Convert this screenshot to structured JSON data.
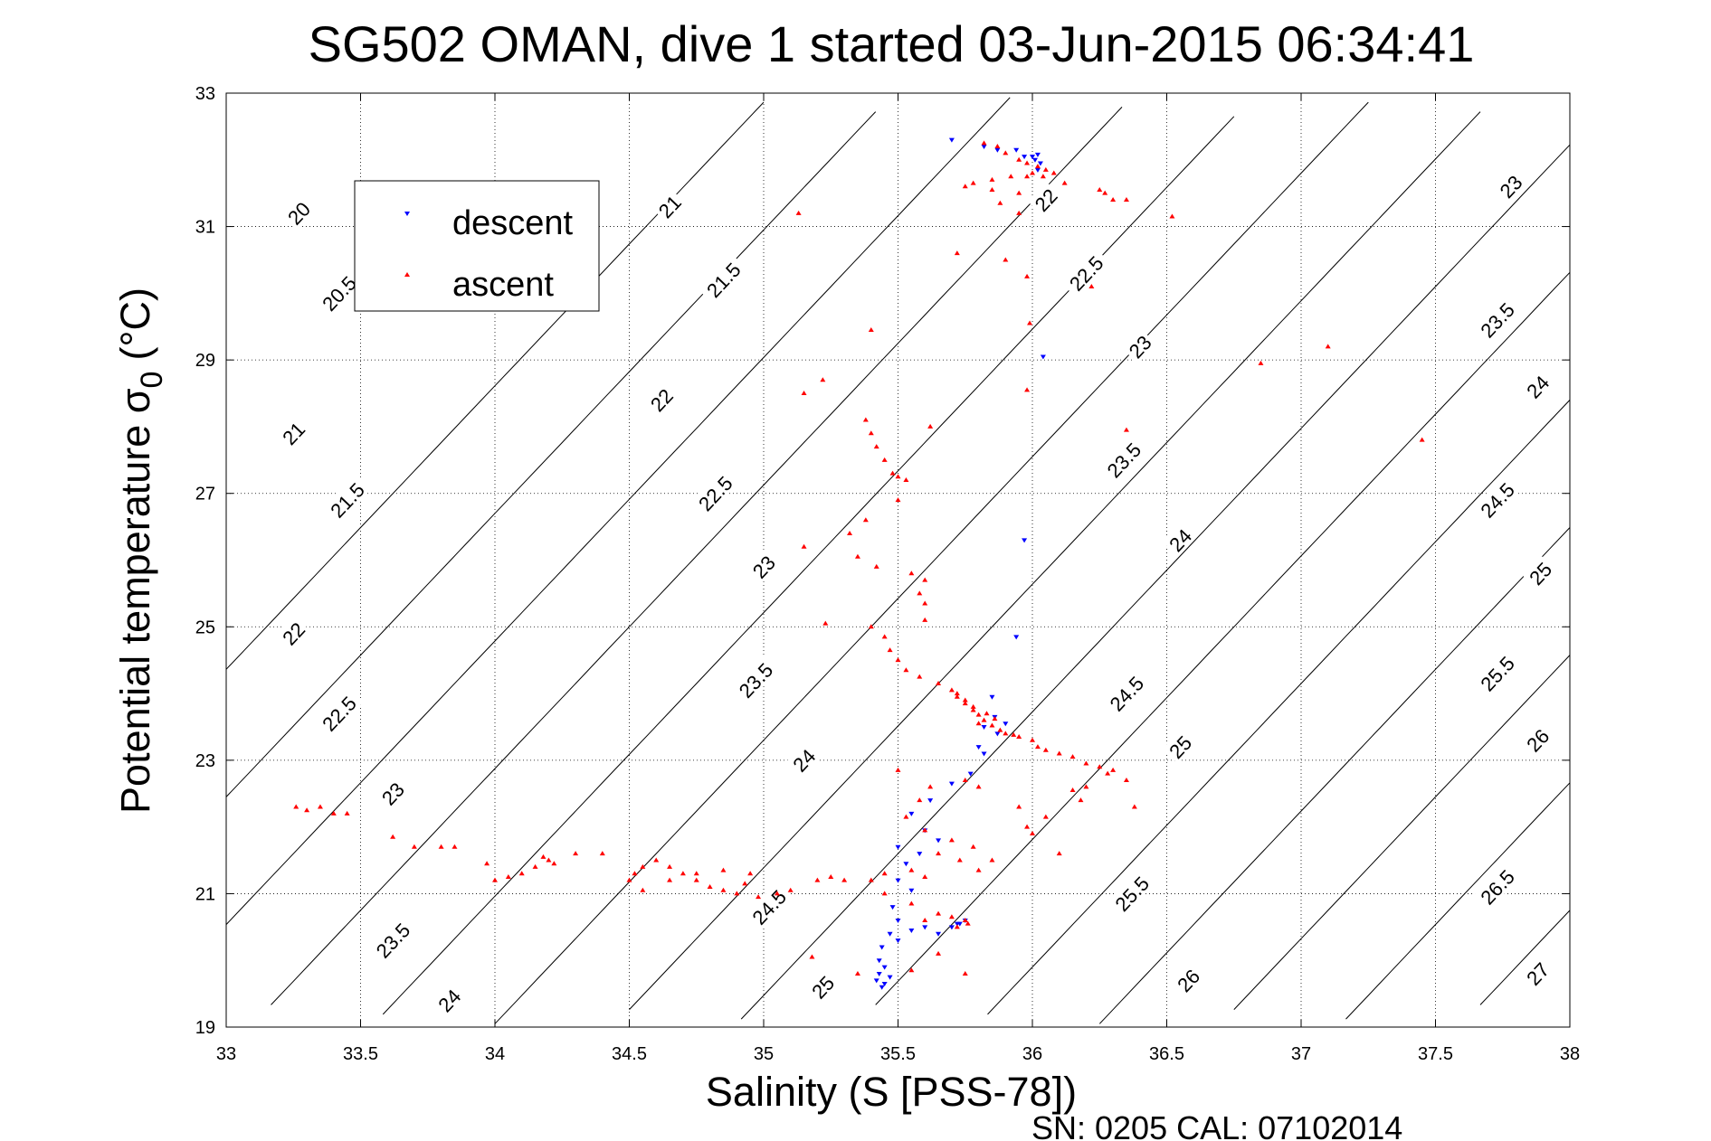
{
  "chart_data": {
    "type": "scatter",
    "title": "SG502 OMAN, dive 1 started 03-Jun-2015 06:34:41",
    "xlabel": "Salinity (S [PSS-78])",
    "ylabel_main": "Potential temperature σ",
    "ylabel_sub": "0",
    "ylabel_unit": "(°C)",
    "footnote": "SN: 0205  CAL: 07102014",
    "xlim": [
      33,
      38
    ],
    "ylim": [
      19,
      33
    ],
    "x_ticks": [
      33,
      33.5,
      34,
      34.5,
      35,
      35.5,
      36,
      36.5,
      37,
      37.5,
      38
    ],
    "x_tick_labels": [
      "33",
      "33.5",
      "34",
      "34.5",
      "35",
      "35.5",
      "36",
      "36.5",
      "37",
      "37.5",
      "38"
    ],
    "y_ticks": [
      19,
      21,
      23,
      25,
      27,
      29,
      31,
      33
    ],
    "y_tick_labels": [
      "19",
      "21",
      "23",
      "25",
      "27",
      "29",
      "31",
      "33"
    ],
    "grid": true,
    "legend_position": "top-left",
    "contour_levels": [
      20,
      20.5,
      21,
      21.5,
      22,
      22.5,
      23,
      23.5,
      24,
      24.5,
      25,
      25.5,
      26,
      26.5,
      27
    ],
    "contour_label_texts": [
      "20",
      "20.5",
      "21",
      "21.5",
      "22",
      "22.5",
      "23",
      "23.5",
      "24",
      "24.5",
      "25",
      "25.5",
      "26",
      "26.5",
      "27"
    ],
    "contour_labels": [
      {
        "text": "20",
        "s": 33.27,
        "t": 31.2
      },
      {
        "text": "20.5",
        "s": 33.42,
        "t": 30.0
      },
      {
        "text": "21",
        "s": 33.25,
        "t": 27.9
      },
      {
        "text": "21.5",
        "s": 33.45,
        "t": 26.9
      },
      {
        "text": "22",
        "s": 33.25,
        "t": 24.9
      },
      {
        "text": "22.5",
        "s": 33.42,
        "t": 23.7
      },
      {
        "text": "23",
        "s": 33.62,
        "t": 22.5
      },
      {
        "text": "23.5",
        "s": 33.62,
        "t": 20.3
      },
      {
        "text": "24",
        "s": 33.83,
        "t": 19.4
      },
      {
        "text": "21",
        "s": 34.65,
        "t": 31.3
      },
      {
        "text": "21.5",
        "s": 34.85,
        "t": 30.2
      },
      {
        "text": "22",
        "s": 34.62,
        "t": 28.4
      },
      {
        "text": "22.5",
        "s": 34.82,
        "t": 27.0
      },
      {
        "text": "23",
        "s": 35.0,
        "t": 25.9
      },
      {
        "text": "23.5",
        "s": 34.97,
        "t": 24.2
      },
      {
        "text": "24",
        "s": 35.15,
        "t": 23.0
      },
      {
        "text": "24.5",
        "s": 35.02,
        "t": 20.8
      },
      {
        "text": "25",
        "s": 35.22,
        "t": 19.6
      },
      {
        "text": "22",
        "s": 36.05,
        "t": 31.4
      },
      {
        "text": "22.5",
        "s": 36.2,
        "t": 30.3
      },
      {
        "text": "23",
        "s": 36.4,
        "t": 29.2
      },
      {
        "text": "23.5",
        "s": 36.34,
        "t": 27.5
      },
      {
        "text": "24",
        "s": 36.55,
        "t": 26.3
      },
      {
        "text": "24.5",
        "s": 36.35,
        "t": 24.0
      },
      {
        "text": "25",
        "s": 36.55,
        "t": 23.2
      },
      {
        "text": "25.5",
        "s": 36.37,
        "t": 21.0
      },
      {
        "text": "26",
        "s": 36.58,
        "t": 19.7
      },
      {
        "text": "23",
        "s": 37.78,
        "t": 31.6
      },
      {
        "text": "23.5",
        "s": 37.73,
        "t": 29.6
      },
      {
        "text": "24",
        "s": 37.88,
        "t": 28.6
      },
      {
        "text": "24.5",
        "s": 37.73,
        "t": 26.9
      },
      {
        "text": "25",
        "s": 37.89,
        "t": 25.8
      },
      {
        "text": "25.5",
        "s": 37.73,
        "t": 24.3
      },
      {
        "text": "26",
        "s": 37.88,
        "t": 23.3
      },
      {
        "text": "26.5",
        "s": 37.73,
        "t": 21.1
      },
      {
        "text": "27",
        "s": 37.88,
        "t": 19.8
      }
    ],
    "series": [
      {
        "name": "descent",
        "color": "#0000ff",
        "marker": "triangle-down",
        "points": [
          [
            35.7,
            32.3
          ],
          [
            35.82,
            32.2
          ],
          [
            35.87,
            32.15
          ],
          [
            35.94,
            32.15
          ],
          [
            35.97,
            32.05
          ],
          [
            36.0,
            32.05
          ],
          [
            36.02,
            32.08
          ],
          [
            36.01,
            32.0
          ],
          [
            36.03,
            31.95
          ],
          [
            36.02,
            31.85
          ],
          [
            36.04,
            29.05
          ],
          [
            35.97,
            26.3
          ],
          [
            35.94,
            24.85
          ],
          [
            35.85,
            23.95
          ],
          [
            35.86,
            23.65
          ],
          [
            35.82,
            23.5
          ],
          [
            35.9,
            23.55
          ],
          [
            35.87,
            23.4
          ],
          [
            35.8,
            23.2
          ],
          [
            35.82,
            23.1
          ],
          [
            35.77,
            22.8
          ],
          [
            35.7,
            22.65
          ],
          [
            35.62,
            22.4
          ],
          [
            35.55,
            22.2
          ],
          [
            35.6,
            21.95
          ],
          [
            35.65,
            21.8
          ],
          [
            35.5,
            21.7
          ],
          [
            35.58,
            21.6
          ],
          [
            35.53,
            21.45
          ],
          [
            35.5,
            21.2
          ],
          [
            35.55,
            21.05
          ],
          [
            35.48,
            20.8
          ],
          [
            35.5,
            20.6
          ],
          [
            35.47,
            20.4
          ],
          [
            35.44,
            20.2
          ],
          [
            35.43,
            20.0
          ],
          [
            35.45,
            19.9
          ],
          [
            35.43,
            19.8
          ],
          [
            35.42,
            19.7
          ],
          [
            35.45,
            19.65
          ],
          [
            35.44,
            19.6
          ],
          [
            35.47,
            19.75
          ],
          [
            35.5,
            20.3
          ],
          [
            35.55,
            20.45
          ],
          [
            35.6,
            20.5
          ],
          [
            35.65,
            20.4
          ],
          [
            35.7,
            20.5
          ],
          [
            35.72,
            20.55
          ],
          [
            35.75,
            20.6
          ],
          [
            35.73,
            20.55
          ]
        ]
      },
      {
        "name": "ascent",
        "color": "#ff0000",
        "marker": "triangle-up",
        "points": [
          [
            35.82,
            32.25
          ],
          [
            35.87,
            32.2
          ],
          [
            35.9,
            32.1
          ],
          [
            35.95,
            32.0
          ],
          [
            35.98,
            31.95
          ],
          [
            36.02,
            31.9
          ],
          [
            36.05,
            31.85
          ],
          [
            36.0,
            31.8
          ],
          [
            36.04,
            31.75
          ],
          [
            36.08,
            31.8
          ],
          [
            35.98,
            31.75
          ],
          [
            35.92,
            31.75
          ],
          [
            35.85,
            31.7
          ],
          [
            35.78,
            31.65
          ],
          [
            35.75,
            31.6
          ],
          [
            35.85,
            31.55
          ],
          [
            35.95,
            31.5
          ],
          [
            36.12,
            31.65
          ],
          [
            36.25,
            31.55
          ],
          [
            36.27,
            31.5
          ],
          [
            36.3,
            31.4
          ],
          [
            36.35,
            31.4
          ],
          [
            35.88,
            31.35
          ],
          [
            35.95,
            31.2
          ],
          [
            36.52,
            31.15
          ],
          [
            35.13,
            31.2
          ],
          [
            35.72,
            30.6
          ],
          [
            35.9,
            30.5
          ],
          [
            35.98,
            30.25
          ],
          [
            36.22,
            30.1
          ],
          [
            35.99,
            29.55
          ],
          [
            35.4,
            29.45
          ],
          [
            35.98,
            28.55
          ],
          [
            35.15,
            28.5
          ],
          [
            35.22,
            28.7
          ],
          [
            36.85,
            28.95
          ],
          [
            37.1,
            29.2
          ],
          [
            35.38,
            28.1
          ],
          [
            35.4,
            27.9
          ],
          [
            35.42,
            27.7
          ],
          [
            35.45,
            27.5
          ],
          [
            35.48,
            27.3
          ],
          [
            35.5,
            27.25
          ],
          [
            35.53,
            27.2
          ],
          [
            35.5,
            26.9
          ],
          [
            35.38,
            26.6
          ],
          [
            35.32,
            26.4
          ],
          [
            35.15,
            26.2
          ],
          [
            35.35,
            26.05
          ],
          [
            35.42,
            25.9
          ],
          [
            35.55,
            25.8
          ],
          [
            35.6,
            25.7
          ],
          [
            35.58,
            25.5
          ],
          [
            35.6,
            25.35
          ],
          [
            35.6,
            25.1
          ],
          [
            35.4,
            25.0
          ],
          [
            35.23,
            25.05
          ],
          [
            35.45,
            24.85
          ],
          [
            35.47,
            24.65
          ],
          [
            35.5,
            24.5
          ],
          [
            35.53,
            24.35
          ],
          [
            35.58,
            24.25
          ],
          [
            35.65,
            24.15
          ],
          [
            35.7,
            24.05
          ],
          [
            35.72,
            23.95
          ],
          [
            35.75,
            23.85
          ],
          [
            35.78,
            23.75
          ],
          [
            35.8,
            23.68
          ],
          [
            35.82,
            23.6
          ],
          [
            35.85,
            23.52
          ],
          [
            35.88,
            23.45
          ],
          [
            35.9,
            23.4
          ],
          [
            35.93,
            23.38
          ],
          [
            35.72,
            24.0
          ],
          [
            35.75,
            23.9
          ],
          [
            35.78,
            23.8
          ],
          [
            35.83,
            23.7
          ],
          [
            35.86,
            23.62
          ],
          [
            35.8,
            23.55
          ],
          [
            35.95,
            23.35
          ],
          [
            36.0,
            23.3
          ],
          [
            36.02,
            23.2
          ],
          [
            36.05,
            23.15
          ],
          [
            36.1,
            23.1
          ],
          [
            36.15,
            23.05
          ],
          [
            36.2,
            22.95
          ],
          [
            36.25,
            22.9
          ],
          [
            36.3,
            22.85
          ],
          [
            36.28,
            22.8
          ],
          [
            36.35,
            22.7
          ],
          [
            36.15,
            22.55
          ],
          [
            36.2,
            22.6
          ],
          [
            36.18,
            22.4
          ],
          [
            36.38,
            22.3
          ],
          [
            36.05,
            22.15
          ],
          [
            36.0,
            21.9
          ],
          [
            35.95,
            22.3
          ],
          [
            35.8,
            22.6
          ],
          [
            35.75,
            22.7
          ],
          [
            35.5,
            22.85
          ],
          [
            35.62,
            22.6
          ],
          [
            35.58,
            22.4
          ],
          [
            35.53,
            22.15
          ],
          [
            35.6,
            21.95
          ],
          [
            35.7,
            21.8
          ],
          [
            35.78,
            21.7
          ],
          [
            35.65,
            21.6
          ],
          [
            35.73,
            21.5
          ],
          [
            35.8,
            21.35
          ],
          [
            35.6,
            21.25
          ],
          [
            35.55,
            21.35
          ],
          [
            35.45,
            21.3
          ],
          [
            35.4,
            21.2
          ],
          [
            35.3,
            21.2
          ],
          [
            35.25,
            21.25
          ],
          [
            35.2,
            21.2
          ],
          [
            35.1,
            21.05
          ],
          [
            35.05,
            21.0
          ],
          [
            34.98,
            20.95
          ],
          [
            34.9,
            21.0
          ],
          [
            34.85,
            21.05
          ],
          [
            34.8,
            21.1
          ],
          [
            34.75,
            21.2
          ],
          [
            34.7,
            21.3
          ],
          [
            34.65,
            21.4
          ],
          [
            34.6,
            21.5
          ],
          [
            34.55,
            21.4
          ],
          [
            34.5,
            21.2
          ],
          [
            34.52,
            21.3
          ],
          [
            34.55,
            21.05
          ],
          [
            34.65,
            21.2
          ],
          [
            34.75,
            21.3
          ],
          [
            34.85,
            21.35
          ],
          [
            34.95,
            21.3
          ],
          [
            34.93,
            21.15
          ],
          [
            34.4,
            21.6
          ],
          [
            34.3,
            21.6
          ],
          [
            34.2,
            21.5
          ],
          [
            34.15,
            21.4
          ],
          [
            34.1,
            21.3
          ],
          [
            34.05,
            21.25
          ],
          [
            34.0,
            21.2
          ],
          [
            34.18,
            21.55
          ],
          [
            34.22,
            21.45
          ],
          [
            33.97,
            21.45
          ],
          [
            33.85,
            21.7
          ],
          [
            33.8,
            21.7
          ],
          [
            33.7,
            21.7
          ],
          [
            33.62,
            21.85
          ],
          [
            33.45,
            22.2
          ],
          [
            33.4,
            22.2
          ],
          [
            33.35,
            22.3
          ],
          [
            33.3,
            22.25
          ],
          [
            33.26,
            22.3
          ],
          [
            35.6,
            20.6
          ],
          [
            35.65,
            20.7
          ],
          [
            35.7,
            20.65
          ],
          [
            35.75,
            20.6
          ],
          [
            35.76,
            20.55
          ],
          [
            35.72,
            20.5
          ],
          [
            35.75,
            19.8
          ],
          [
            35.55,
            19.85
          ],
          [
            35.35,
            19.8
          ],
          [
            35.65,
            20.1
          ],
          [
            35.18,
            20.05
          ],
          [
            36.1,
            21.6
          ],
          [
            35.55,
            20.85
          ],
          [
            35.45,
            21.0
          ],
          [
            35.85,
            21.5
          ],
          [
            35.98,
            22.0
          ],
          [
            37.45,
            27.8
          ],
          [
            36.35,
            27.95
          ],
          [
            35.62,
            28.0
          ]
        ]
      }
    ]
  }
}
